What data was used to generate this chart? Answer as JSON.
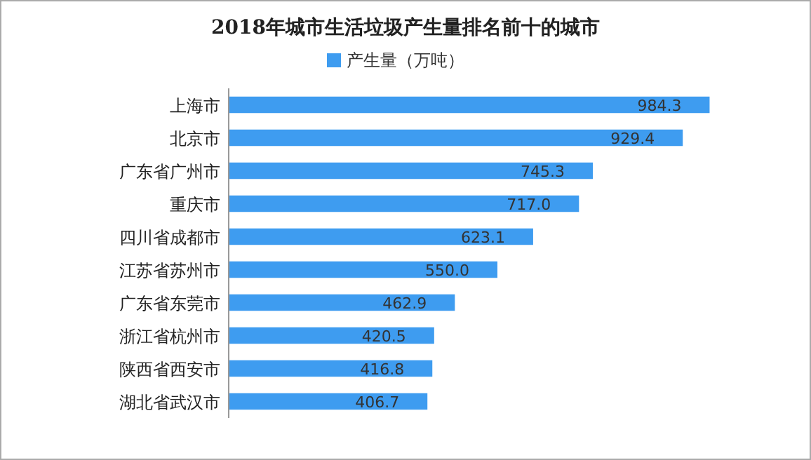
{
  "chart_data": {
    "type": "bar",
    "orientation": "horizontal",
    "title": "2018年城市生活垃圾产生量排名前十的城市",
    "categories": [
      "上海市",
      "北京市",
      "广东省广州市",
      "重庆市",
      "四川省成都市",
      "江苏省苏州市",
      "广东省东莞市",
      "浙江省杭州市",
      "陕西省西安市",
      "湖北省武汉市"
    ],
    "series": [
      {
        "name": "产生量（万吨）",
        "color": "#3e9cf0",
        "values": [
          984.3,
          929.4,
          745.3,
          717.0,
          623.1,
          550.0,
          462.9,
          420.5,
          416.8,
          406.7
        ],
        "value_labels": [
          "984.3",
          "929.4",
          "745.3",
          "717.0",
          "623.1",
          "550.0",
          "462.9",
          "420.5",
          "416.8",
          "406.7"
        ]
      }
    ],
    "legend": "top"
  }
}
